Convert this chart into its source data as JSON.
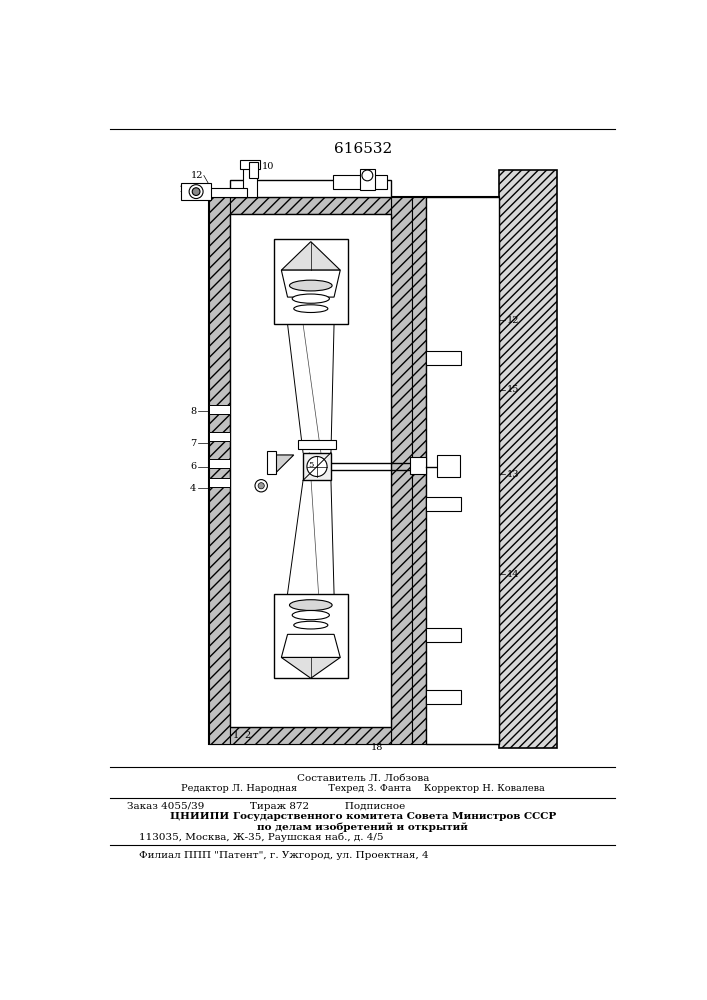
{
  "patent_number": "616532",
  "bg_color": "#ffffff",
  "fig_width": 7.07,
  "fig_height": 10.0,
  "footer_lines": [
    "Составитель Л. Лобзова",
    "Редактор Л. Народная          Техред 3. Фанта    Корректор Н. Ковалева",
    "Заказ 4055/39              Тираж 872           Подписное",
    "ЦНИИПИ Государственного комитета Совета Министров СССР",
    "по делам изобретений и открытий",
    "113035, Москва, Ж-35, Раушская наб., д. 4/5",
    "Филиал ППП \"Патент\", г. Ужгород, ул. Проектная, 4"
  ]
}
